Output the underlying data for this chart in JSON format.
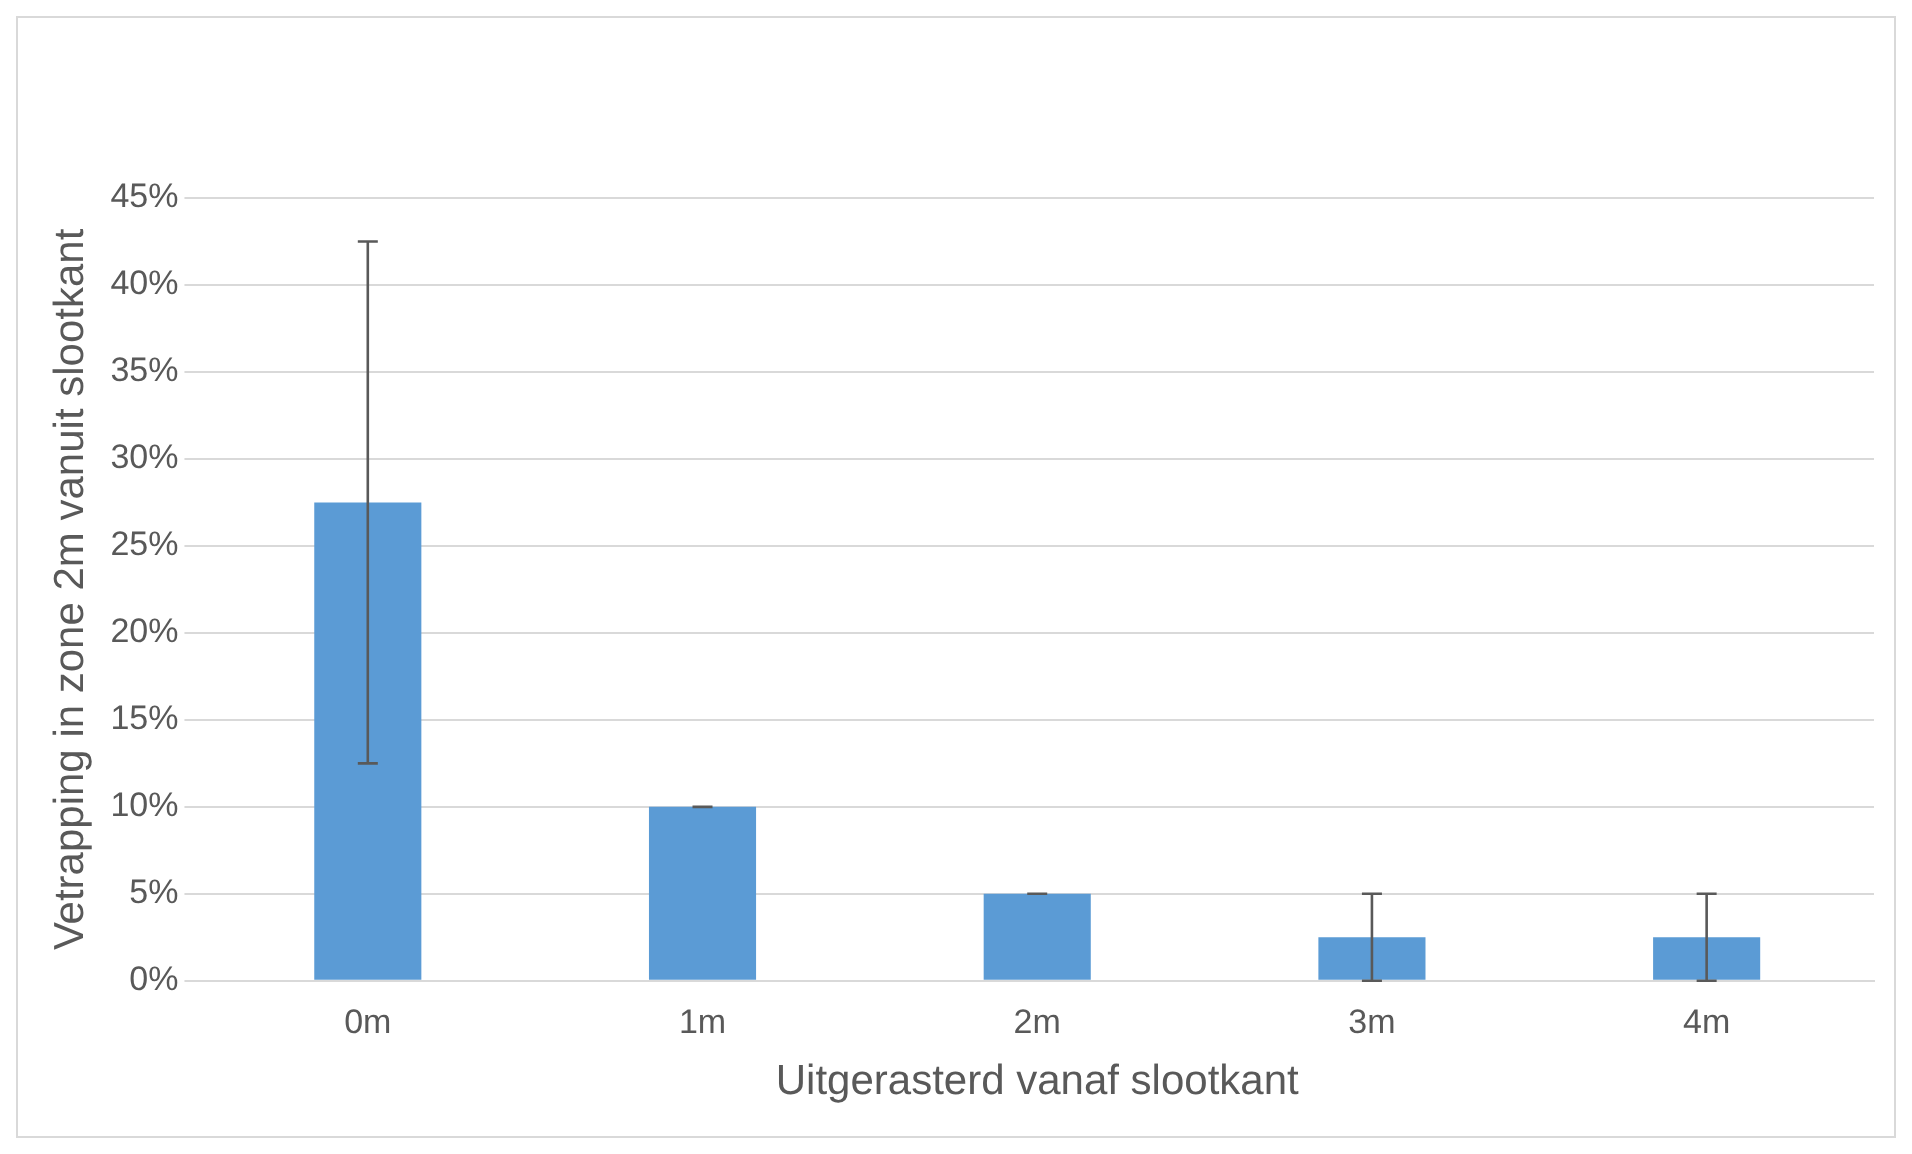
{
  "chart_data": {
    "type": "bar",
    "xlabel": "Uitgerasterd vanaf slootkant",
    "ylabel": "Vetrapping in zone 2m vanuit slootkant",
    "categories": [
      "0m",
      "1m",
      "2m",
      "3m",
      "4m"
    ],
    "values": [
      27.5,
      10,
      5,
      2.5,
      2.5
    ],
    "errors": [
      15,
      0,
      0,
      2.5,
      2.5
    ],
    "color": "#5b9bd5",
    "ylim": [
      0,
      45
    ],
    "yticks": [
      {
        "value": 0,
        "label": "0%"
      },
      {
        "value": 5,
        "label": "5%"
      },
      {
        "value": 10,
        "label": "10%"
      },
      {
        "value": 15,
        "label": "15%"
      },
      {
        "value": 20,
        "label": "20%"
      },
      {
        "value": 25,
        "label": "25%"
      },
      {
        "value": 30,
        "label": "30%"
      },
      {
        "value": 35,
        "label": "35%"
      },
      {
        "value": 40,
        "label": "40%"
      },
      {
        "value": 45,
        "label": "45%"
      }
    ],
    "grid": "y",
    "legend": false
  }
}
